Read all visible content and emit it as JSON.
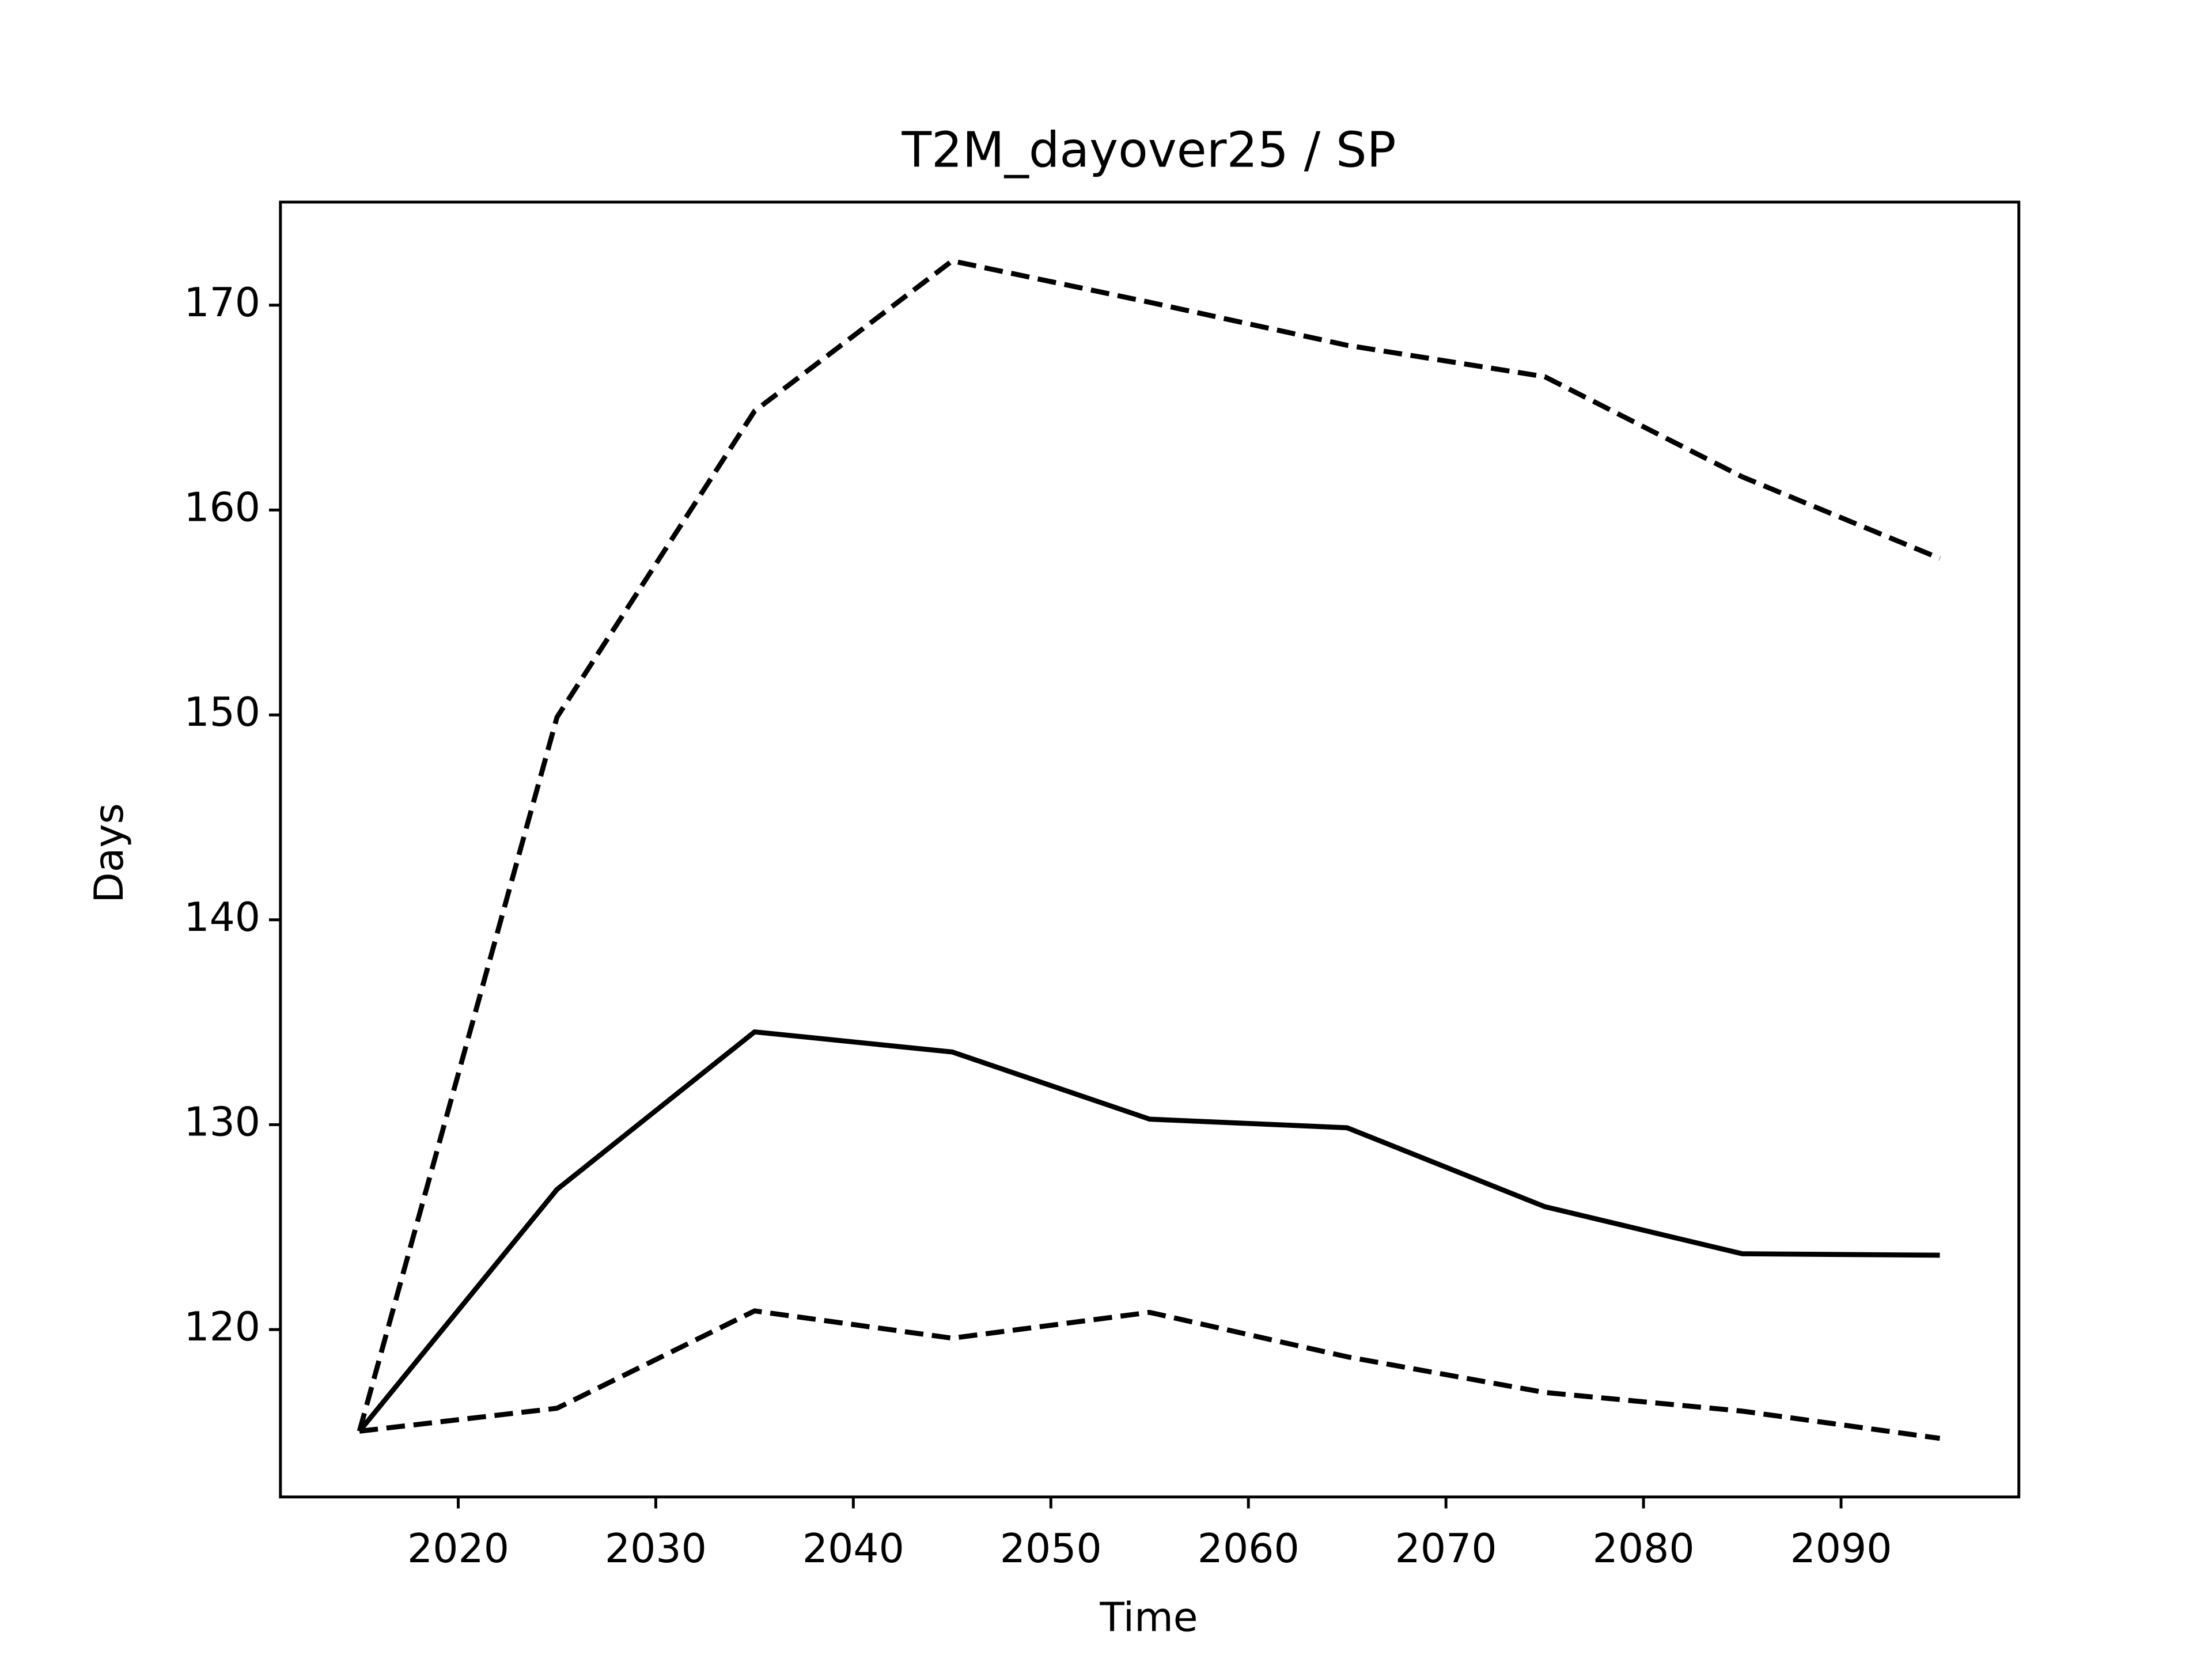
{
  "chart_data": {
    "type": "line",
    "title": "T2M_dayover25 / SP",
    "xlabel": "Time",
    "ylabel": "Days",
    "x": [
      2015,
      2025,
      2035,
      2045,
      2055,
      2065,
      2075,
      2085,
      2095
    ],
    "series": [
      {
        "color": "#000000",
        "linestyle": "dashed",
        "values": [
          115.04,
          149.89,
          164.83,
          172.16,
          170.14,
          168.04,
          166.51,
          161.62,
          157.64
        ]
      },
      {
        "color": "#000000",
        "linestyle": "solid",
        "values": [
          115.04,
          126.84,
          134.53,
          133.55,
          130.27,
          129.85,
          126.0,
          123.7,
          123.63
        ]
      },
      {
        "color": "#000000",
        "linestyle": "dashed",
        "values": [
          115.04,
          116.16,
          120.91,
          119.58,
          120.84,
          118.67,
          116.93,
          116.02,
          114.69
        ]
      }
    ],
    "xlim": [
      2011,
      2099
    ],
    "xticks": [
      2020,
      2030,
      2040,
      2050,
      2060,
      2070,
      2080,
      2090
    ],
    "ylim": [
      111.83,
      175.03
    ],
    "yticks": [
      120,
      130,
      140,
      150,
      160,
      170
    ],
    "grid": false
  }
}
